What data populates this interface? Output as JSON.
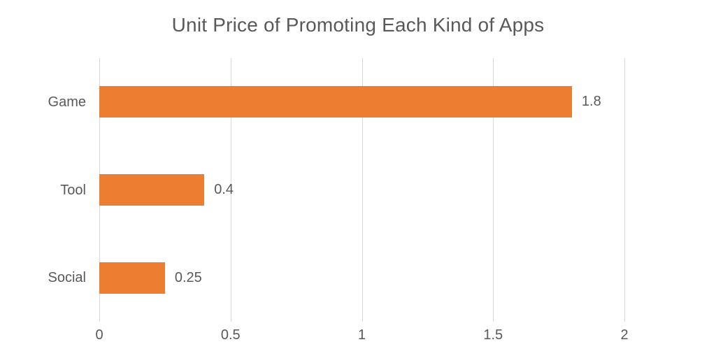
{
  "chart_data": {
    "type": "bar",
    "orientation": "horizontal",
    "title": "Unit Price of Promoting Each Kind of Apps",
    "categories": [
      "Game",
      "Tool",
      "Social"
    ],
    "values": [
      1.8,
      0.4,
      0.25
    ],
    "data_labels": [
      "1.8",
      "0.4",
      "0.25"
    ],
    "xlim": [
      0,
      2
    ],
    "x_ticks": [
      0,
      0.5,
      1,
      1.5,
      2
    ],
    "x_tick_labels": [
      "0",
      "0.5",
      "1",
      "1.5",
      "2"
    ],
    "xlabel": "",
    "ylabel": "",
    "grid": true,
    "legend": "none",
    "bar_color": "#ed7d31",
    "gridline_color": "#d9d9d9",
    "text_color": "#595959"
  }
}
